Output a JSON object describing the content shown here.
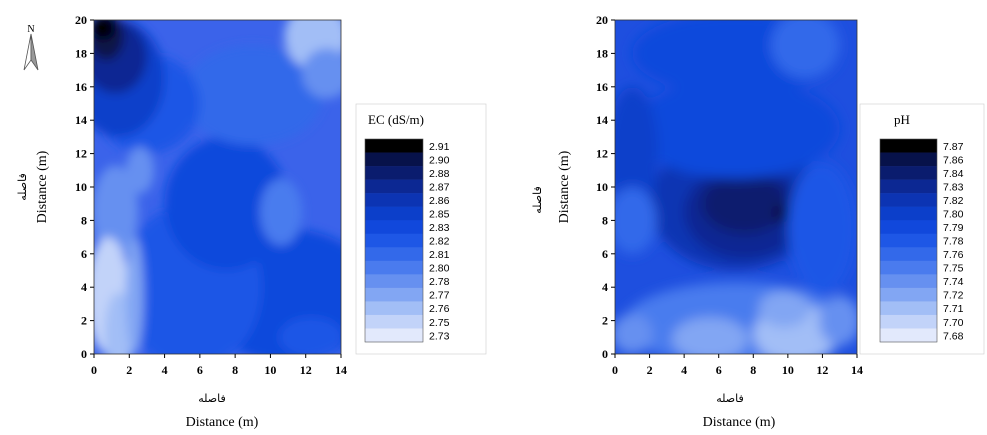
{
  "chart_data": [
    {
      "type": "heatmap",
      "xlabel": "Distance (m)",
      "ylabel": "Distance (m)",
      "xlabel_fa": "فاصله",
      "ylabel_fa": "فاصله",
      "xlim": [
        0,
        14
      ],
      "ylim": [
        0,
        20
      ],
      "xticks": [
        "0",
        "2",
        "4",
        "6",
        "8",
        "10",
        "12",
        "14"
      ],
      "yticks": [
        "0",
        "2",
        "4",
        "6",
        "8",
        "10",
        "12",
        "14",
        "16",
        "18",
        "20"
      ],
      "legend": {
        "title": "EC (dS/m)",
        "labels": [
          "2.91",
          "2.90",
          "2.88",
          "2.87",
          "2.86",
          "2.85",
          "2.83",
          "2.82",
          "2.81",
          "2.80",
          "2.78",
          "2.77",
          "2.76",
          "2.75",
          "2.73"
        ],
        "colors": [
          "#000000",
          "#07124a",
          "#0a1c6e",
          "#0c2893",
          "#0c34b3",
          "#0c3fca",
          "#1148dc",
          "#1e57e6",
          "#3369ea",
          "#4a7bee",
          "#6690f0",
          "#82a6f3",
          "#a2bef6",
          "#c2d3f9",
          "#e2e9fc"
        ]
      },
      "grid": false,
      "compass": "N"
    },
    {
      "type": "heatmap",
      "xlabel": "Distance (m)",
      "ylabel": "Distance (m)",
      "xlabel_fa": "فاصله",
      "ylabel_fa": "فاصله",
      "xlim": [
        0,
        14
      ],
      "ylim": [
        0,
        20
      ],
      "xticks": [
        "0",
        "2",
        "4",
        "6",
        "8",
        "10",
        "12",
        "14"
      ],
      "yticks": [
        "0",
        "2",
        "4",
        "6",
        "8",
        "10",
        "12",
        "14",
        "16",
        "18",
        "20"
      ],
      "legend": {
        "title": "pH",
        "labels": [
          "7.87",
          "7.86",
          "7.84",
          "7.83",
          "7.82",
          "7.80",
          "7.79",
          "7.78",
          "7.76",
          "7.75",
          "7.74",
          "7.72",
          "7.71",
          "7.70",
          "7.68"
        ],
        "colors": [
          "#000000",
          "#07124a",
          "#0a1c6e",
          "#0c2893",
          "#0c34b3",
          "#0c3fca",
          "#1148dc",
          "#1e57e6",
          "#3369ea",
          "#4a7bee",
          "#6690f0",
          "#82a6f3",
          "#a2bef6",
          "#c2d3f9",
          "#e2e9fc"
        ]
      },
      "grid": false
    }
  ]
}
